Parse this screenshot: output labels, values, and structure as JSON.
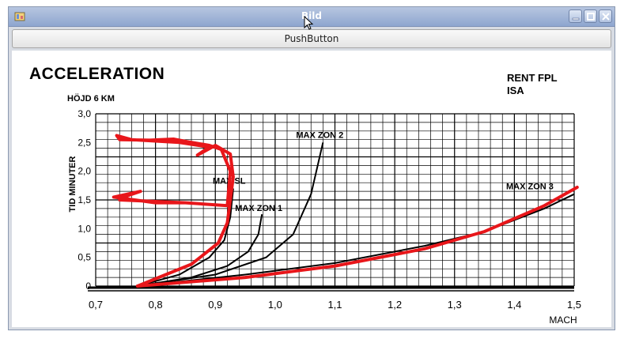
{
  "window": {
    "title": "Bild"
  },
  "toolbar": {
    "push_button_label": "PushButton"
  },
  "chart_data": {
    "type": "line",
    "title": "ACCELERATION",
    "subtitle": "HÖJD 6 KM",
    "corner_note_line1": "RENT FPL",
    "corner_note_line2": "ISA",
    "xlabel": "MACH",
    "ylabel": "TID MINUTER",
    "xlim": [
      0.7,
      1.5
    ],
    "ylim": [
      0,
      3.0
    ],
    "x_ticks": [
      "0,7",
      "0,8",
      "0,9",
      "1,0",
      "1,1",
      "1,2",
      "1,3",
      "1,4",
      "1,5"
    ],
    "y_ticks": [
      "0",
      "0,5",
      "1,0",
      "1,5",
      "2,0",
      "2,5",
      "3,0"
    ],
    "grid": true,
    "series": [
      {
        "name": "MAX SL",
        "points": [
          [
            0.77,
            0
          ],
          [
            0.84,
            0.2
          ],
          [
            0.89,
            0.5
          ],
          [
            0.915,
            0.8
          ],
          [
            0.925,
            1.2
          ],
          [
            0.93,
            1.7
          ]
        ]
      },
      {
        "name": "MAX ZON 1",
        "points": [
          [
            0.77,
            0
          ],
          [
            0.86,
            0.15
          ],
          [
            0.92,
            0.35
          ],
          [
            0.955,
            0.6
          ],
          [
            0.972,
            0.9
          ],
          [
            0.978,
            1.25
          ]
        ]
      },
      {
        "name": "MAX ZON 2",
        "points": [
          [
            0.77,
            0
          ],
          [
            0.9,
            0.2
          ],
          [
            0.985,
            0.5
          ],
          [
            1.03,
            0.9
          ],
          [
            1.06,
            1.6
          ],
          [
            1.08,
            2.5
          ]
        ]
      },
      {
        "name": "MAX ZON 3",
        "points": [
          [
            0.77,
            0
          ],
          [
            0.95,
            0.2
          ],
          [
            1.1,
            0.4
          ],
          [
            1.25,
            0.7
          ],
          [
            1.35,
            0.95
          ],
          [
            1.45,
            1.35
          ],
          [
            1.5,
            1.6
          ]
        ]
      }
    ],
    "annotation": {
      "color": "#e8161a",
      "points": [
        [
          0.77,
          0
        ],
        [
          0.86,
          0.38
        ],
        [
          0.905,
          0.75
        ],
        [
          0.92,
          1.1
        ],
        [
          0.925,
          1.5
        ],
        [
          0.93,
          1.9
        ],
        [
          0.925,
          2.3
        ],
        [
          0.9,
          2.45
        ],
        [
          0.87,
          2.28
        ],
        [
          0.89,
          2.42
        ],
        [
          0.84,
          2.5
        ],
        [
          0.76,
          2.55
        ],
        [
          0.735,
          2.62
        ],
        [
          0.74,
          2.55
        ],
        [
          0.79,
          2.54
        ],
        [
          0.83,
          2.56
        ],
        [
          0.85,
          2.52
        ],
        [
          0.89,
          2.45
        ],
        [
          0.91,
          2.38
        ],
        [
          0.925,
          2.0
        ],
        [
          0.92,
          1.4
        ],
        [
          0.85,
          1.45
        ],
        [
          0.74,
          1.5
        ],
        [
          0.755,
          1.58
        ],
        [
          0.775,
          1.65
        ],
        [
          0.73,
          1.55
        ],
        [
          0.8,
          1.45
        ],
        [
          0.85,
          1.45
        ]
      ],
      "points2": [
        [
          0.77,
          0
        ],
        [
          0.95,
          0.15
        ],
        [
          1.1,
          0.35
        ],
        [
          1.25,
          0.65
        ],
        [
          1.35,
          0.95
        ],
        [
          1.45,
          1.4
        ],
        [
          1.505,
          1.72
        ]
      ]
    }
  }
}
